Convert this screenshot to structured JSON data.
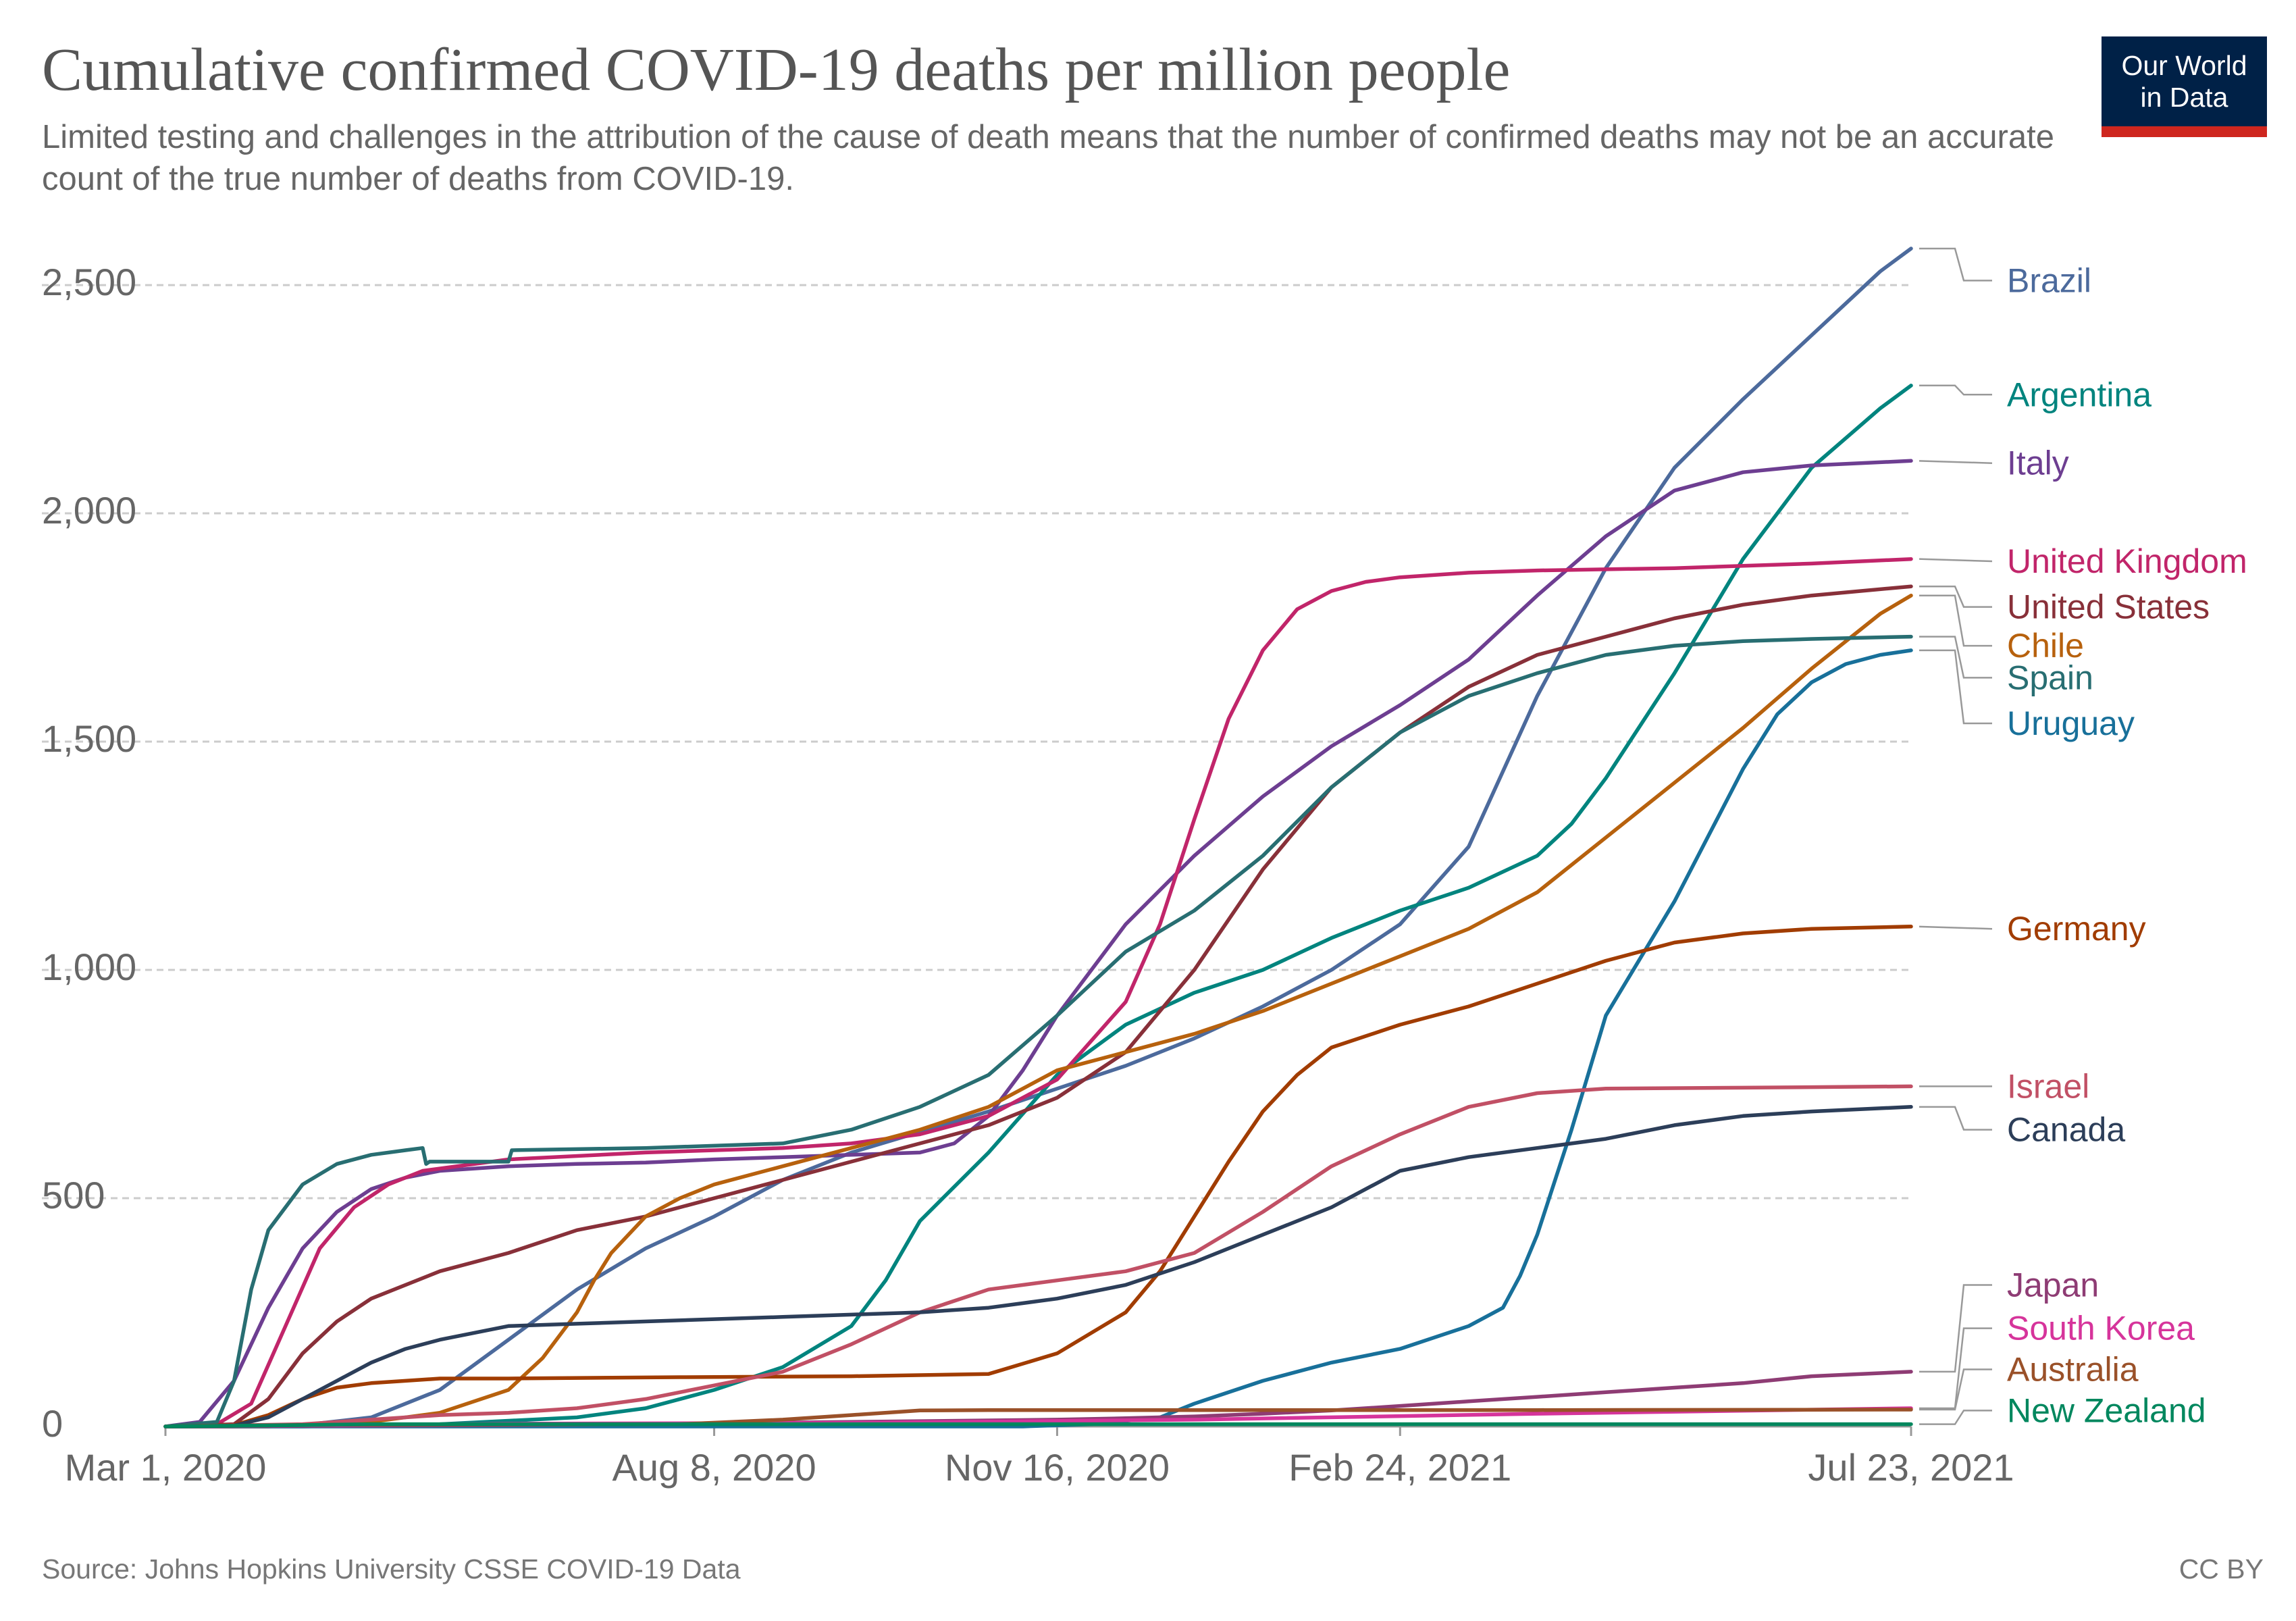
{
  "chart_data": {
    "type": "line",
    "title": "Cumulative confirmed COVID-19 deaths per million people",
    "subtitle": "Limited testing and challenges in the attribution of the cause of death means that the number of confirmed deaths may not be an accurate count of the true number of deaths from COVID-19.",
    "xlabel": "",
    "ylabel": "",
    "x_unit": "days since Mar 1, 2020",
    "xlim": [
      0,
      509
    ],
    "ylim": [
      0,
      2580
    ],
    "grid": true,
    "x_ticks": [
      {
        "value": 0,
        "label": "Mar 1, 2020"
      },
      {
        "value": 160,
        "label": "Aug 8, 2020"
      },
      {
        "value": 260,
        "label": "Nov 16, 2020"
      },
      {
        "value": 360,
        "label": "Feb 24, 2021"
      },
      {
        "value": 509,
        "label": "Jul 23, 2021"
      }
    ],
    "y_ticks": [
      {
        "value": 0,
        "label": "0"
      },
      {
        "value": 500,
        "label": "500"
      },
      {
        "value": 1000,
        "label": "1,000"
      },
      {
        "value": 1500,
        "label": "1,500"
      },
      {
        "value": 2000,
        "label": "2,000"
      },
      {
        "value": 2500,
        "label": "2,500"
      }
    ],
    "series": [
      {
        "name": "Brazil",
        "color": "#4c6a9c",
        "label_value": 2510,
        "x": [
          0,
          20,
          40,
          60,
          80,
          100,
          120,
          140,
          160,
          180,
          200,
          220,
          240,
          260,
          280,
          300,
          320,
          340,
          360,
          380,
          400,
          420,
          440,
          460,
          480,
          500,
          509
        ],
        "y": [
          0,
          0,
          3,
          20,
          80,
          190,
          300,
          390,
          460,
          540,
          600,
          645,
          690,
          740,
          790,
          850,
          920,
          1000,
          1100,
          1270,
          1600,
          1880,
          2100,
          2250,
          2390,
          2530,
          2580
        ]
      },
      {
        "name": "Argentina",
        "color": "#00847e",
        "label_value": 2260,
        "x": [
          0,
          40,
          80,
          120,
          140,
          160,
          180,
          200,
          210,
          220,
          240,
          260,
          280,
          300,
          320,
          340,
          360,
          380,
          400,
          410,
          420,
          440,
          460,
          480,
          500,
          509
        ],
        "y": [
          0,
          0,
          5,
          20,
          40,
          80,
          130,
          220,
          320,
          450,
          600,
          770,
          880,
          950,
          1000,
          1070,
          1130,
          1180,
          1250,
          1320,
          1420,
          1650,
          1900,
          2100,
          2230,
          2280
        ]
      },
      {
        "name": "Italy",
        "color": "#6d3e91",
        "label_value": 2110,
        "x": [
          0,
          10,
          20,
          30,
          40,
          50,
          60,
          70,
          80,
          100,
          120,
          140,
          160,
          180,
          200,
          220,
          230,
          240,
          250,
          260,
          280,
          300,
          320,
          340,
          360,
          380,
          400,
          420,
          440,
          460,
          480,
          509
        ],
        "y": [
          0,
          10,
          100,
          260,
          390,
          470,
          520,
          545,
          560,
          570,
          575,
          578,
          585,
          590,
          595,
          600,
          620,
          680,
          780,
          900,
          1100,
          1250,
          1380,
          1490,
          1580,
          1680,
          1820,
          1950,
          2050,
          2090,
          2105,
          2115
        ]
      },
      {
        "name": "United Kingdom",
        "color": "#c1256a",
        "label_value": 1895,
        "x": [
          0,
          15,
          25,
          35,
          45,
          55,
          65,
          75,
          100,
          140,
          180,
          200,
          220,
          240,
          260,
          280,
          290,
          300,
          310,
          320,
          330,
          340,
          350,
          360,
          380,
          400,
          440,
          480,
          509
        ],
        "y": [
          0,
          5,
          50,
          220,
          390,
          480,
          530,
          560,
          585,
          600,
          610,
          620,
          640,
          680,
          760,
          930,
          1100,
          1330,
          1550,
          1700,
          1790,
          1830,
          1850,
          1860,
          1870,
          1875,
          1880,
          1890,
          1900
        ]
      },
      {
        "name": "United States",
        "color": "#883039",
        "label_value": 1795,
        "x": [
          0,
          20,
          30,
          40,
          50,
          60,
          80,
          100,
          120,
          140,
          160,
          180,
          200,
          220,
          240,
          260,
          280,
          300,
          320,
          340,
          360,
          380,
          400,
          420,
          440,
          460,
          480,
          509
        ],
        "y": [
          0,
          5,
          60,
          160,
          230,
          280,
          340,
          380,
          430,
          460,
          500,
          540,
          580,
          620,
          660,
          720,
          820,
          1000,
          1220,
          1400,
          1520,
          1620,
          1690,
          1730,
          1770,
          1800,
          1820,
          1840
        ]
      },
      {
        "name": "Chile",
        "color": "#b7610d",
        "label_value": 1710,
        "x": [
          0,
          30,
          60,
          80,
          100,
          110,
          120,
          125,
          130,
          140,
          150,
          160,
          180,
          200,
          220,
          240,
          260,
          280,
          300,
          320,
          340,
          360,
          380,
          400,
          420,
          440,
          460,
          480,
          500,
          509
        ],
        "y": [
          0,
          0,
          10,
          30,
          80,
          150,
          250,
          320,
          380,
          460,
          500,
          530,
          570,
          610,
          650,
          700,
          780,
          820,
          860,
          910,
          970,
          1030,
          1090,
          1170,
          1290,
          1410,
          1530,
          1660,
          1780,
          1820
        ]
      },
      {
        "name": "Spain",
        "color": "#286e72",
        "label_value": 1640,
        "x": [
          0,
          15,
          20,
          25,
          30,
          40,
          50,
          60,
          70,
          75,
          76,
          77,
          100,
          101,
          140,
          180,
          200,
          220,
          240,
          260,
          280,
          300,
          320,
          340,
          360,
          380,
          400,
          420,
          440,
          460,
          480,
          509
        ],
        "y": [
          0,
          10,
          100,
          300,
          430,
          530,
          575,
          595,
          605,
          610,
          575,
          580,
          580,
          605,
          610,
          620,
          650,
          700,
          770,
          900,
          1040,
          1130,
          1250,
          1400,
          1520,
          1600,
          1650,
          1690,
          1710,
          1720,
          1725,
          1730
        ]
      },
      {
        "name": "Uruguay",
        "color": "#18709a",
        "label_value": 1540,
        "x": [
          0,
          250,
          270,
          290,
          300,
          320,
          340,
          360,
          380,
          390,
          395,
          400,
          410,
          420,
          440,
          460,
          470,
          480,
          490,
          500,
          509
        ],
        "y": [
          0,
          0,
          5,
          20,
          50,
          100,
          140,
          170,
          220,
          260,
          330,
          420,
          650,
          900,
          1150,
          1440,
          1560,
          1630,
          1670,
          1690,
          1700
        ]
      },
      {
        "name": "Germany",
        "color": "#a13c00",
        "label_value": 1090,
        "x": [
          0,
          20,
          30,
          40,
          50,
          60,
          70,
          80,
          100,
          150,
          200,
          240,
          260,
          280,
          290,
          300,
          310,
          320,
          330,
          340,
          360,
          380,
          400,
          420,
          440,
          460,
          480,
          509
        ],
        "y": [
          0,
          3,
          25,
          60,
          85,
          95,
          100,
          105,
          105,
          108,
          110,
          115,
          160,
          250,
          340,
          460,
          580,
          690,
          770,
          830,
          880,
          920,
          970,
          1020,
          1060,
          1080,
          1090,
          1095
        ]
      },
      {
        "name": "Israel",
        "color": "#c15065",
        "label_value": 745,
        "x": [
          0,
          40,
          60,
          80,
          100,
          120,
          140,
          160,
          180,
          200,
          220,
          240,
          260,
          280,
          300,
          320,
          340,
          360,
          380,
          400,
          420,
          460,
          509
        ],
        "y": [
          0,
          5,
          15,
          25,
          30,
          40,
          60,
          90,
          120,
          180,
          250,
          300,
          320,
          340,
          380,
          470,
          570,
          640,
          700,
          730,
          740,
          742,
          745
        ]
      },
      {
        "name": "Canada",
        "color": "#2c3e59",
        "label_value": 650,
        "x": [
          0,
          20,
          30,
          40,
          50,
          60,
          70,
          80,
          100,
          120,
          140,
          160,
          180,
          200,
          220,
          240,
          260,
          280,
          300,
          320,
          340,
          360,
          380,
          400,
          420,
          440,
          460,
          480,
          509
        ],
        "y": [
          0,
          2,
          20,
          60,
          100,
          140,
          170,
          190,
          220,
          225,
          230,
          235,
          240,
          245,
          250,
          260,
          280,
          310,
          360,
          420,
          480,
          560,
          590,
          610,
          630,
          660,
          680,
          690,
          700
        ]
      },
      {
        "name": "Japan",
        "color": "#8e3c74",
        "label_value": 310,
        "x": [
          0,
          100,
          200,
          260,
          280,
          300,
          320,
          340,
          360,
          380,
          400,
          420,
          440,
          460,
          480,
          509
        ],
        "y": [
          0,
          3,
          10,
          15,
          18,
          22,
          28,
          35,
          45,
          55,
          65,
          75,
          85,
          95,
          110,
          120
        ]
      },
      {
        "name": "South Korea",
        "color": "#d6349b",
        "label_value": 215,
        "x": [
          0,
          100,
          200,
          300,
          400,
          509
        ],
        "y": [
          0,
          6,
          8,
          15,
          28,
          40
        ]
      },
      {
        "name": "Australia",
        "color": "#9a5129",
        "label_value": 125,
        "x": [
          0,
          50,
          150,
          180,
          200,
          220,
          240,
          300,
          400,
          509
        ],
        "y": [
          0,
          4,
          5,
          15,
          25,
          35,
          36,
          36,
          36,
          37
        ]
      },
      {
        "name": "New Zealand",
        "color": "#00875e",
        "label_value": 35,
        "x": [
          0,
          40,
          60,
          509
        ],
        "y": [
          0,
          3,
          5,
          5
        ]
      }
    ]
  },
  "source": "Source: Johns Hopkins University CSSE COVID-19 Data",
  "license": "CC BY",
  "logo": {
    "line1": "Our World",
    "line2": "in Data"
  }
}
